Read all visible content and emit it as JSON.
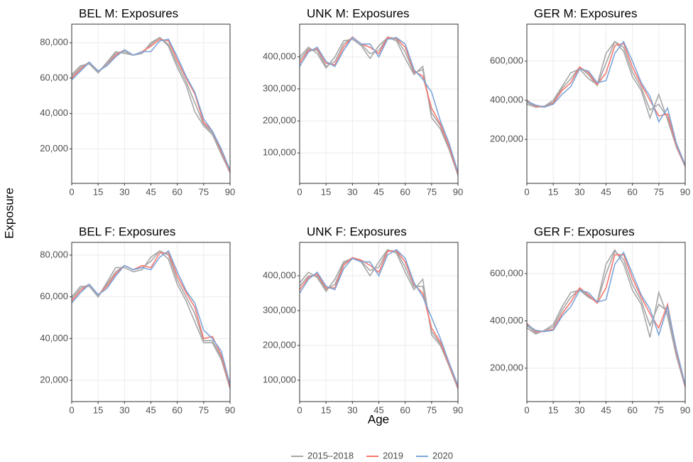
{
  "chart_data": {
    "type": "line",
    "xlabel": "Age",
    "ylabel": "Exposure",
    "x": [
      0,
      5,
      10,
      15,
      20,
      25,
      30,
      35,
      40,
      45,
      50,
      55,
      60,
      65,
      70,
      75,
      80,
      85,
      90
    ],
    "xlim": [
      0,
      90
    ],
    "xticks": [
      0,
      15,
      30,
      45,
      60,
      75,
      90
    ],
    "grid": true,
    "legend": [
      {
        "name": "2015–2018",
        "color": "#a6a6a6"
      },
      {
        "name": "2019",
        "color": "#f8766d"
      },
      {
        "name": "2020",
        "color": "#7ca5d8"
      }
    ],
    "panels": [
      {
        "title": "BEL M: Exposures",
        "ylim": [
          500,
          90500
        ],
        "yticks": [
          {
            "value": 20000,
            "label": "20,000"
          },
          {
            "value": 40000,
            "label": "40,000"
          },
          {
            "value": 60000,
            "label": "60,000"
          },
          {
            "value": 80000,
            "label": "80,000"
          }
        ],
        "series": [
          {
            "color": "#a6a6a6",
            "values": [
              62000,
              67000,
              68000,
              63000,
              69000,
              75000,
              74000,
              73000,
              74000,
              80000,
              83000,
              78000,
              66000,
              56000,
              41000,
              33000,
              28000,
              17000,
              6500
            ]
          },
          {
            "color": "#a6a6a6",
            "values": [
              61000,
              66000,
              69000,
              63000,
              68000,
              74000,
              75000,
              73000,
              74000,
              79000,
              83000,
              79000,
              68000,
              58000,
              46000,
              34000,
              29000,
              18000,
              7000
            ]
          },
          {
            "color": "#f8766d",
            "values": [
              60000,
              65000,
              69000,
              64000,
              67000,
              73000,
              76000,
              73000,
              75000,
              78000,
              82000,
              81000,
              70000,
              60000,
              51000,
              35000,
              30000,
              19000,
              7000
            ]
          },
          {
            "color": "#7ca5d8",
            "values": [
              59000,
              64000,
              69000,
              64000,
              67000,
              72000,
              76000,
              73000,
              75000,
              75000,
              81000,
              82000,
              72000,
              61000,
              52000,
              37000,
              30000,
              20000,
              8000
            ]
          }
        ]
      },
      {
        "title": "UNK M: Exposures",
        "ylim": [
          5000,
          502000
        ],
        "yticks": [
          {
            "value": 100000,
            "label": "100,000"
          },
          {
            "value": 200000,
            "label": "200,000"
          },
          {
            "value": 300000,
            "label": "300,000"
          },
          {
            "value": 400000,
            "label": "400,000"
          }
        ],
        "series": [
          {
            "color": "#a6a6a6",
            "values": [
              400000,
              430000,
              410000,
              365000,
              400000,
              450000,
              455000,
              435000,
              395000,
              435000,
              460000,
              450000,
              395000,
              345000,
              370000,
              210000,
              175000,
              110000,
              30000
            ]
          },
          {
            "color": "#a6a6a6",
            "values": [
              390000,
              425000,
              420000,
              370000,
              385000,
              440000,
              460000,
              440000,
              410000,
              420000,
              462000,
              455000,
              415000,
              350000,
              360000,
              225000,
              185000,
              115000,
              33000
            ]
          },
          {
            "color": "#f8766d",
            "values": [
              380000,
              420000,
              425000,
              380000,
              375000,
              430000,
              462000,
              440000,
              430000,
              410000,
              460000,
              458000,
              430000,
              355000,
              340000,
              240000,
              190000,
              120000,
              35000
            ]
          },
          {
            "color": "#7ca5d8",
            "values": [
              370000,
              415000,
              430000,
              385000,
              370000,
              420000,
              460000,
              440000,
              440000,
              400000,
              455000,
              460000,
              440000,
              360000,
              330000,
              290000,
              200000,
              130000,
              40000
            ]
          }
        ]
      },
      {
        "title": "GER M: Exposures",
        "ylim": [
          -25000,
          789000
        ],
        "yticks": [
          {
            "value": 200000,
            "label": "200,000"
          },
          {
            "value": 400000,
            "label": "400,000"
          },
          {
            "value": 600000,
            "label": "600,000"
          }
        ],
        "series": [
          {
            "color": "#a6a6a6",
            "values": [
              380000,
              365000,
              370000,
              400000,
              470000,
              540000,
              560000,
              510000,
              480000,
              640000,
              700000,
              650000,
              520000,
              450000,
              310000,
              430000,
              300000,
              160000,
              60000
            ]
          },
          {
            "color": "#a6a6a6",
            "values": [
              390000,
              365000,
              368000,
              390000,
              460000,
              510000,
              570000,
              530000,
              475000,
              590000,
              700000,
              670000,
              545000,
              465000,
              350000,
              380000,
              310000,
              165000,
              62000
            ]
          },
          {
            "color": "#f8766d",
            "values": [
              400000,
              370000,
              365000,
              385000,
              450000,
              490000,
              570000,
              540000,
              480000,
              540000,
              680000,
              690000,
              570000,
              480000,
              400000,
              320000,
              330000,
              170000,
              65000
            ]
          },
          {
            "color": "#7ca5d8",
            "values": [
              395000,
              375000,
              365000,
              380000,
              430000,
              470000,
              560000,
              550000,
              490000,
              500000,
              640000,
              700000,
              600000,
              490000,
              420000,
              290000,
              360000,
              180000,
              70000
            ]
          }
        ]
      },
      {
        "title": "BEL F: Exposures",
        "ylim": [
          9800,
          86100
        ],
        "yticks": [
          {
            "value": 20000,
            "label": "20,000"
          },
          {
            "value": 40000,
            "label": "40,000"
          },
          {
            "value": 60000,
            "label": "60,000"
          },
          {
            "value": 80000,
            "label": "80,000"
          }
        ],
        "series": [
          {
            "color": "#a6a6a6",
            "values": [
              60000,
              65000,
              65000,
              60000,
              67000,
              74000,
              74000,
              72000,
              73000,
              79000,
              82000,
              78000,
              66000,
              58000,
              48000,
              38000,
              38000,
              30000,
              16000
            ]
          },
          {
            "color": "#a6a6a6",
            "values": [
              59000,
              64000,
              66000,
              60000,
              66000,
              72000,
              75000,
              73000,
              74000,
              77000,
              82000,
              80000,
              68000,
              60000,
              52000,
              39000,
              39000,
              31000,
              17000
            ]
          },
          {
            "color": "#f8766d",
            "values": [
              58000,
              63000,
              66000,
              61000,
              65000,
              71000,
              75000,
              73000,
              75000,
              74000,
              81000,
              81000,
              70000,
              62000,
              55000,
              40000,
              41000,
              32000,
              17000
            ]
          },
          {
            "color": "#7ca5d8",
            "values": [
              57000,
              62000,
              66000,
              61000,
              64000,
              70000,
              75000,
              73000,
              74000,
              73000,
              79000,
              82000,
              72000,
              63000,
              57000,
              44000,
              40000,
              34000,
              18000
            ]
          }
        ]
      },
      {
        "title": "UNK F: Exposures",
        "ylim": [
          38800,
          495900
        ],
        "yticks": [
          {
            "value": 100000,
            "label": "100,000"
          },
          {
            "value": 200000,
            "label": "200,000"
          },
          {
            "value": 300000,
            "label": "300,000"
          },
          {
            "value": 400000,
            "label": "400,000"
          }
        ],
        "series": [
          {
            "color": "#a6a6a6",
            "values": [
              380000,
              410000,
              395000,
              355000,
              390000,
              440000,
              450000,
              440000,
              400000,
              440000,
              475000,
              465000,
              410000,
              360000,
              390000,
              230000,
              200000,
              140000,
              75000
            ]
          },
          {
            "color": "#a6a6a6",
            "values": [
              370000,
              400000,
              400000,
              360000,
              375000,
              435000,
              452000,
              442000,
              415000,
              425000,
              473000,
              470000,
              425000,
              368000,
              370000,
              240000,
              205000,
              142000,
              78000
            ]
          },
          {
            "color": "#f8766d",
            "values": [
              360000,
              395000,
              405000,
              365000,
              365000,
              430000,
              452000,
              445000,
              430000,
              410000,
              470000,
              472000,
              440000,
              375000,
              350000,
              250000,
              210000,
              145000,
              80000
            ]
          },
          {
            "color": "#7ca5d8",
            "values": [
              350000,
              390000,
              410000,
              370000,
              360000,
              420000,
              450000,
              440000,
              440000,
              400000,
              460000,
              475000,
              450000,
              380000,
              340000,
              280000,
              220000,
              150000,
              85000
            ]
          }
        ]
      },
      {
        "title": "GER F: Exposures",
        "ylim": [
          58600,
          732300
        ],
        "yticks": [
          {
            "value": 200000,
            "label": "200,000"
          },
          {
            "value": 400000,
            "label": "400,000"
          },
          {
            "value": 600000,
            "label": "600,000"
          }
        ],
        "series": [
          {
            "color": "#a6a6a6",
            "values": [
              370000,
              345000,
              360000,
              385000,
              460000,
              520000,
              530000,
              500000,
              480000,
              640000,
              700000,
              640000,
              530000,
              470000,
              330000,
              520000,
              420000,
              250000,
              120000
            ]
          },
          {
            "color": "#a6a6a6",
            "values": [
              380000,
              350000,
              358000,
              375000,
              445000,
              500000,
              535000,
              505000,
              478000,
              600000,
              695000,
              660000,
              555000,
              485000,
              380000,
              470000,
              440000,
              260000,
              122000
            ]
          },
          {
            "color": "#f8766d",
            "values": [
              390000,
              355000,
              355000,
              365000,
              430000,
              480000,
              540000,
              510000,
              475000,
              540000,
              680000,
              680000,
              580000,
              500000,
              430000,
              370000,
              470000,
              270000,
              125000
            ]
          },
          {
            "color": "#7ca5d8",
            "values": [
              385000,
              360000,
              355000,
              360000,
              420000,
              460000,
              530000,
              520000,
              480000,
              490000,
              640000,
              690000,
              600000,
              510000,
              450000,
              340000,
              460000,
              280000,
              130000
            ]
          }
        ]
      }
    ]
  }
}
